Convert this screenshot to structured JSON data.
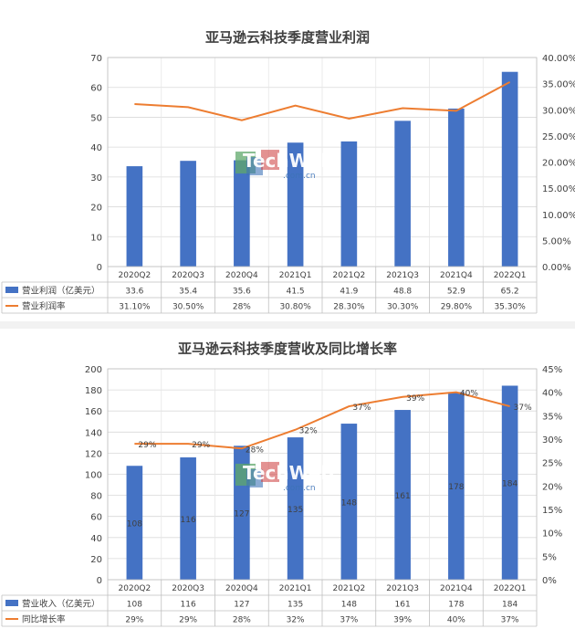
{
  "watermark": {
    "brand": "TechWeb",
    "domain": ".com.cn"
  },
  "colors": {
    "bar": "#4472C4",
    "line": "#ED7D31",
    "grid": "#d9d9d9",
    "text": "#404040"
  },
  "chart_data": [
    {
      "type": "bar",
      "title": "亚马逊云科技季度营业利润",
      "categories": [
        "2020Q2",
        "2020Q3",
        "2020Q4",
        "2021Q1",
        "2021Q2",
        "2021Q3",
        "2021Q4",
        "2022Q1"
      ],
      "ylim": [
        0,
        70
      ],
      "y_ticks": [
        "0",
        "10",
        "20",
        "30",
        "40",
        "50",
        "60",
        "70"
      ],
      "y2lim": [
        0,
        0.4
      ],
      "y2_ticks": [
        "0.00%",
        "5.00%",
        "10.00%",
        "15.00%",
        "20.00%",
        "25.00%",
        "30.00%",
        "35.00%",
        "40.00%"
      ],
      "grid": true,
      "series": [
        {
          "name": "营业利润（亿美元）",
          "kind": "bar",
          "axis": "left",
          "values": [
            33.6,
            35.4,
            35.6,
            41.5,
            41.9,
            48.8,
            52.9,
            65.2
          ],
          "labels": [
            "33.6",
            "35.4",
            "35.6",
            "41.5",
            "41.9",
            "48.8",
            "52.9",
            "65.2"
          ]
        },
        {
          "name": "营业利润率",
          "kind": "line",
          "axis": "right",
          "values": [
            0.311,
            0.305,
            0.28,
            0.308,
            0.283,
            0.303,
            0.298,
            0.353
          ],
          "labels": [
            "31.10%",
            "30.50%",
            "28%",
            "30.80%",
            "28.30%",
            "30.30%",
            "29.80%",
            "35.30%"
          ]
        }
      ]
    },
    {
      "type": "bar",
      "title": "亚马逊云科技季度营收及同比增长率",
      "categories": [
        "2020Q2",
        "2020Q3",
        "2020Q4",
        "2021Q1",
        "2021Q2",
        "2021Q3",
        "2021Q4",
        "2022Q1"
      ],
      "ylim": [
        0,
        200
      ],
      "y_ticks": [
        "0",
        "20",
        "40",
        "60",
        "80",
        "100",
        "120",
        "140",
        "160",
        "180",
        "200"
      ],
      "y2lim": [
        0,
        0.45
      ],
      "y2_ticks": [
        "0%",
        "5%",
        "10%",
        "15%",
        "20%",
        "25%",
        "30%",
        "35%",
        "40%",
        "45%"
      ],
      "grid": true,
      "series": [
        {
          "name": "营业收入（亿美元）",
          "kind": "bar",
          "axis": "left",
          "values": [
            108,
            116,
            127,
            135,
            148,
            161,
            178,
            184
          ],
          "labels": [
            "108",
            "116",
            "127",
            "135",
            "148",
            "161",
            "178",
            "184"
          ]
        },
        {
          "name": "同比增长率",
          "kind": "line",
          "axis": "right",
          "values": [
            0.29,
            0.29,
            0.28,
            0.32,
            0.37,
            0.39,
            0.4,
            0.37
          ],
          "labels": [
            "29%",
            "29%",
            "28%",
            "32%",
            "37%",
            "39%",
            "40%",
            "37%"
          ]
        }
      ],
      "point_labels": [
        "29%",
        "29%",
        "28%",
        "32%",
        "37%",
        "39%",
        "40%",
        "37%"
      ]
    }
  ]
}
